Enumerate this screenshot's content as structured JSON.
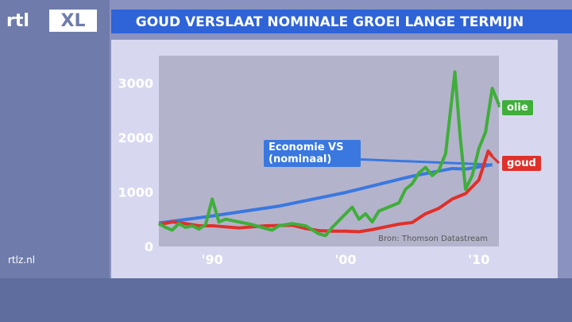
{
  "logo": {
    "left": "rtl",
    "right": "XL"
  },
  "site": "rtlz.nl",
  "chart_data": {
    "type": "line",
    "title": "GOUD VERSLAAT NOMINALE GROEI LANGE TERMIJN",
    "annotation": "Bron: Thomson Datastream",
    "xlim": [
      1986,
      2011.5
    ],
    "xticks": [
      {
        "value": 1990,
        "label": "'90"
      },
      {
        "value": 2000,
        "label": "'00"
      },
      {
        "value": 2010,
        "label": "'10"
      }
    ],
    "ylim": [
      0,
      3500
    ],
    "yticks": [
      0,
      1000,
      2000,
      3000
    ],
    "series": [
      {
        "name": "Economie VS (nominaal)",
        "color": "#3a78e0",
        "x": [
          1986,
          1990,
          1995,
          2000,
          2005,
          2008,
          2009,
          2011
        ],
        "values": [
          430,
          560,
          740,
          990,
          1290,
          1430,
          1420,
          1500
        ]
      },
      {
        "name": "goud",
        "color": "#e0302a",
        "x": [
          1986,
          1987,
          1988,
          1989,
          1990,
          1991,
          1992,
          1993,
          1994,
          1995,
          1996,
          1997,
          1998,
          1999,
          2000,
          2001,
          2002,
          2003,
          2004,
          2005,
          2006,
          2007,
          2008,
          2009,
          2010,
          2010.7,
          2011
        ],
        "values": [
          400,
          450,
          420,
          380,
          380,
          360,
          340,
          360,
          380,
          385,
          390,
          330,
          290,
          280,
          280,
          270,
          310,
          360,
          410,
          440,
          600,
          700,
          870,
          970,
          1220,
          1750,
          1650
        ]
      },
      {
        "name": "olie",
        "color": "#3fae3a",
        "x": [
          1986,
          1986.5,
          1987,
          1987.5,
          1988,
          1988.5,
          1989,
          1989.5,
          1990,
          1990.5,
          1991,
          1992,
          1993,
          1994,
          1994.5,
          1995,
          1996,
          1997,
          1998,
          1998.5,
          1999,
          2000,
          2000.5,
          2001,
          2001.5,
          2002,
          2002.5,
          2003,
          2004,
          2004.5,
          2005,
          2005.5,
          2006,
          2006.5,
          2007,
          2007.5,
          2008.2,
          2008.6,
          2009,
          2009.5,
          2010,
          2010.5,
          2011,
          2011.5
        ],
        "values": [
          420,
          350,
          300,
          420,
          350,
          380,
          320,
          400,
          870,
          450,
          500,
          450,
          400,
          330,
          300,
          380,
          420,
          380,
          230,
          200,
          350,
          600,
          720,
          500,
          600,
          450,
          650,
          700,
          800,
          1050,
          1150,
          1350,
          1450,
          1300,
          1400,
          1700,
          3200,
          2000,
          1050,
          1300,
          1800,
          2100,
          2900,
          2600
        ]
      }
    ]
  }
}
